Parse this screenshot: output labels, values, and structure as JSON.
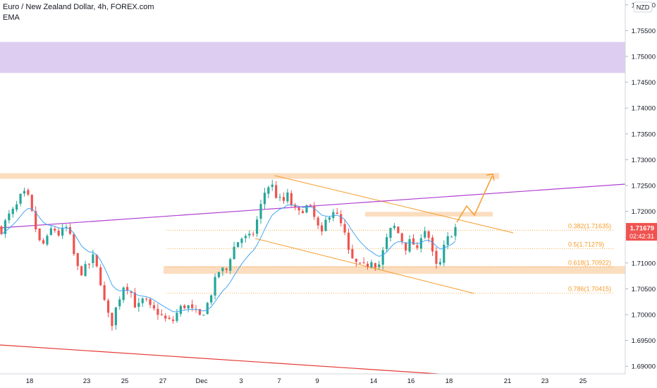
{
  "chart_data": {
    "type": "candlestick",
    "title": "Euro / New Zealand Dollar, 4h, FOREX.com",
    "indicator": "EMA",
    "currency_badge": "NZD",
    "ylim": [
      1.6883,
      1.764
    ],
    "y_ticks": [
      "1.76000",
      "1.75500",
      "1.75000",
      "1.74500",
      "1.74000",
      "1.73500",
      "1.73000",
      "1.72500",
      "1.72000",
      "1.71500",
      "1.71000",
      "1.70500",
      "1.70000",
      "1.69500",
      "1.69000"
    ],
    "x_ticks": [
      "18",
      "23",
      "25",
      "27",
      "Dec",
      "3",
      "7",
      "9",
      "14",
      "16",
      "18",
      "21",
      "23",
      "25"
    ],
    "last_price": "1.71679",
    "countdown": "02:42:31",
    "fib_levels": [
      {
        "label": "0.382(1.71635)",
        "value": 1.71635
      },
      {
        "label": "0.5(1.71279)",
        "value": 1.71279
      },
      {
        "label": "0.618(1.70922)",
        "value": 1.70922
      },
      {
        "label": "0.786(1.70415)",
        "value": 1.70415
      }
    ],
    "zones": [
      {
        "name": "resistance-purple",
        "low": 1.7468,
        "high": 1.7528
      },
      {
        "name": "resistance-orange",
        "low": 1.7263,
        "high": 1.7274
      },
      {
        "name": "support-orange",
        "low": 1.7079,
        "high": 1.7094
      },
      {
        "name": "mini-resistance",
        "low": 1.719,
        "high": 1.7199
      }
    ],
    "colors": {
      "bull": "#26a69a",
      "bear": "#ef5350",
      "ema": "#42a5f5",
      "trendline_purple": "#b040d0",
      "trendline_red": "#e53935",
      "orange": "#f59c2b",
      "purple_zone": "#d9c9f0",
      "orange_zone": "#fbd9b8",
      "price_tag": "#ef5350"
    }
  }
}
